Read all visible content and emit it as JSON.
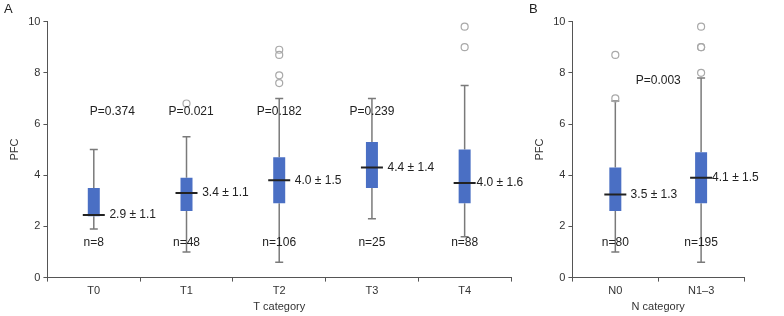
{
  "chart_data": [
    {
      "type": "box",
      "title": "A",
      "x_label": "T category",
      "y_label": "PFC",
      "categories": [
        "T0",
        "T1",
        "T2",
        "T3",
        "T4"
      ],
      "boxes": [
        {
          "low": 1.9,
          "q1": 2.4,
          "median": 2.45,
          "q3": 3.5,
          "high": 5.0,
          "outliers": []
        },
        {
          "low": 1.0,
          "q1": 2.6,
          "median": 3.3,
          "q3": 3.9,
          "high": 5.5,
          "outliers": [
            6.8
          ]
        },
        {
          "low": 0.6,
          "q1": 2.9,
          "median": 3.8,
          "q3": 4.7,
          "high": 7.0,
          "outliers": [
            7.6,
            7.9,
            8.7,
            8.9
          ]
        },
        {
          "low": 2.3,
          "q1": 3.5,
          "median": 4.3,
          "q3": 5.3,
          "high": 7.0,
          "outliers": []
        },
        {
          "low": 1.6,
          "q1": 2.9,
          "median": 3.7,
          "q3": 5.0,
          "high": 7.5,
          "outliers": [
            9.0,
            9.8
          ]
        }
      ],
      "annotations": [
        {
          "text": "P=0.374",
          "x": 0.2,
          "y": 6.5
        },
        {
          "text": "P=0.021",
          "x": 1.05,
          "y": 6.5
        },
        {
          "text": "P=0.182",
          "x": 2.0,
          "y": 6.5
        },
        {
          "text": "P=0.239",
          "x": 3.0,
          "y": 6.5
        },
        {
          "text": "2.9 ± 1.1",
          "x": 0.42,
          "y": 2.45
        },
        {
          "text": "3.4 ± 1.1",
          "x": 1.42,
          "y": 3.3
        },
        {
          "text": "4.0 ± 1.5",
          "x": 2.42,
          "y": 3.8
        },
        {
          "text": "4.4 ± 1.4",
          "x": 3.42,
          "y": 4.3
        },
        {
          "text": "4.0 ± 1.6",
          "x": 4.38,
          "y": 3.7
        },
        {
          "text": "n=8",
          "x": 0,
          "y": 1.35
        },
        {
          "text": "n=48",
          "x": 1,
          "y": 1.35
        },
        {
          "text": "n=106",
          "x": 2,
          "y": 1.35
        },
        {
          "text": "n=25",
          "x": 3,
          "y": 1.35
        },
        {
          "text": "n=88",
          "x": 4,
          "y": 1.35
        }
      ],
      "color": "#4a6fc4",
      "marker": "circle",
      "ylim": [
        0,
        10
      ],
      "yticks": [
        0,
        2,
        4,
        6,
        8,
        10
      ],
      "grid": false
    },
    {
      "type": "box",
      "title": "B",
      "x_label": "N category",
      "y_label": "PFC",
      "categories": [
        "N0",
        "N1–3"
      ],
      "boxes": [
        {
          "low": 1.0,
          "q1": 2.6,
          "median": 3.25,
          "q3": 4.3,
          "high": 6.9,
          "outliers": [
            7.0,
            8.7
          ]
        },
        {
          "low": 0.6,
          "q1": 2.9,
          "median": 3.9,
          "q3": 4.9,
          "high": 7.8,
          "outliers": [
            8.0,
            9.0,
            9.0,
            9.8
          ]
        }
      ],
      "annotations": [
        {
          "text": "P=0.003",
          "x": 0.5,
          "y": 7.7
        },
        {
          "text": "3.5 ± 1.3",
          "x": 0.45,
          "y": 3.25
        },
        {
          "text": "4.1 ± 1.5",
          "x": 1.4,
          "y": 3.9
        },
        {
          "text": "n=80",
          "x": 0,
          "y": 1.35
        },
        {
          "text": "n=195",
          "x": 1,
          "y": 1.35
        }
      ],
      "color": "#4a6fc4",
      "marker": "circle",
      "ylim": [
        0,
        10
      ],
      "yticks": [
        0,
        2,
        4,
        6,
        8,
        10
      ],
      "grid": false
    }
  ]
}
